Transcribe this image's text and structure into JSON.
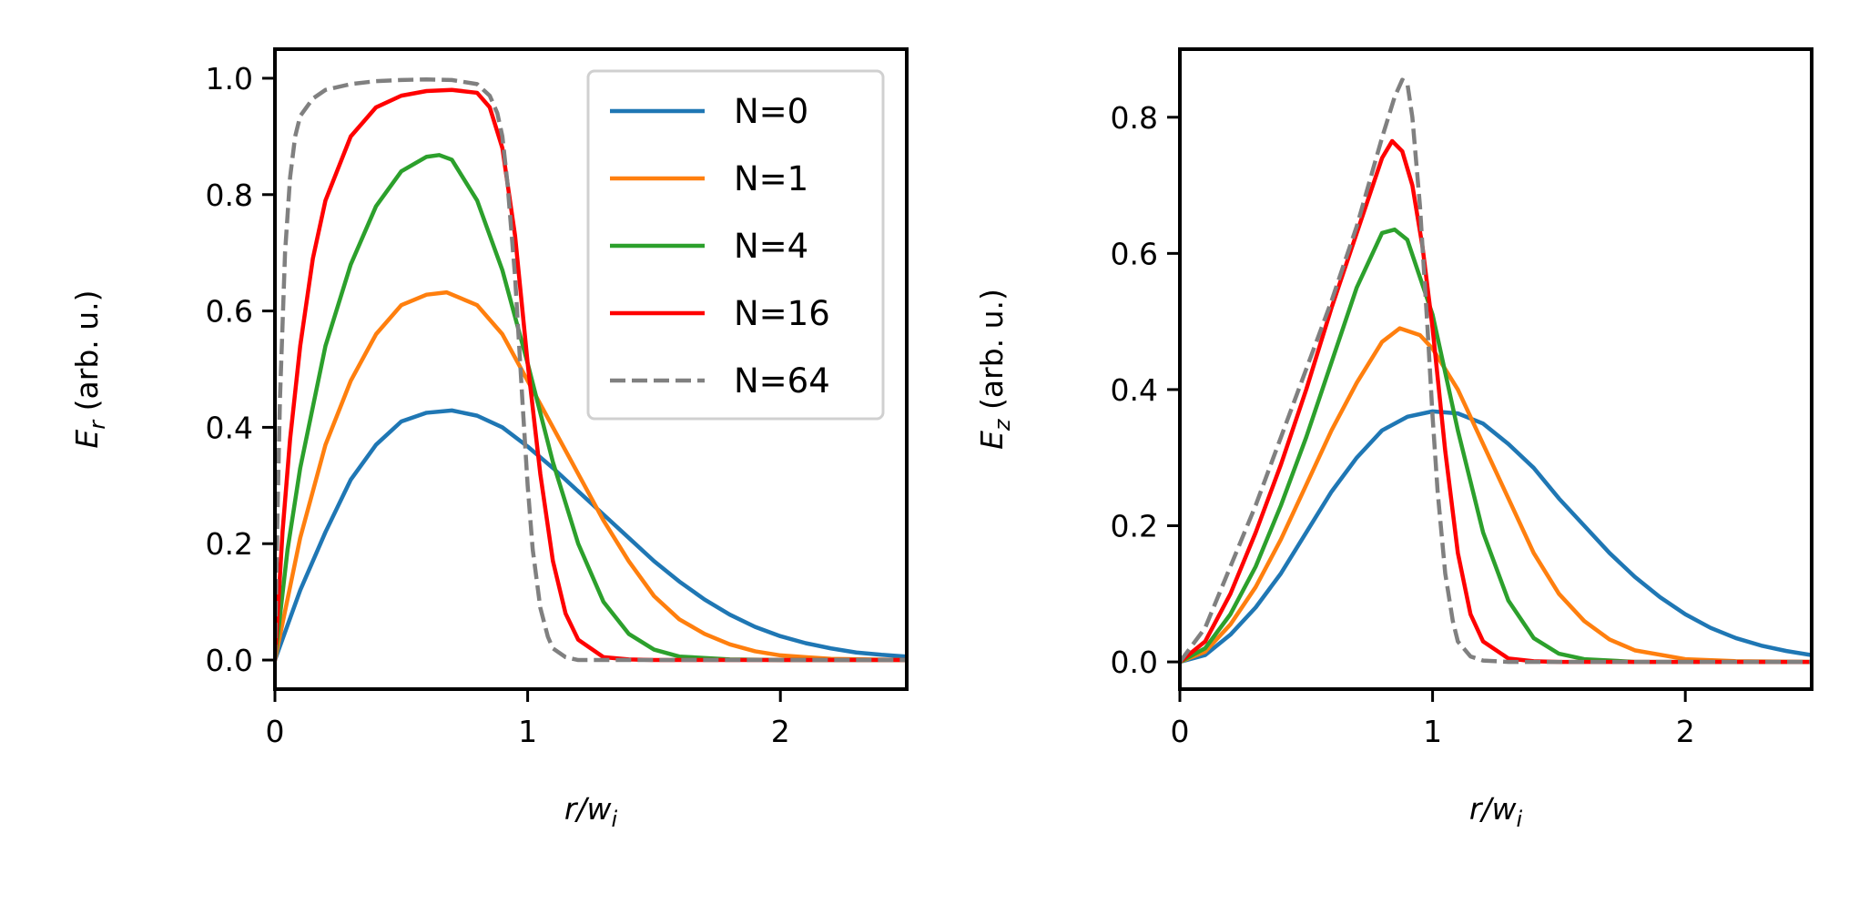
{
  "chart_data": [
    {
      "type": "line",
      "panel": "left",
      "ylabel_main": "E",
      "ylabel_sub": "r",
      "ylabel_rest": " (arb. u.)",
      "xlabel_main": "r/w",
      "xlabel_sub": "i",
      "xlim": [
        0,
        2.5
      ],
      "ylim": [
        -0.05,
        1.05
      ],
      "xticks": [
        "0",
        "1",
        "2"
      ],
      "xtick_values": [
        0,
        1,
        2
      ],
      "yticks": [
        "0.0",
        "0.2",
        "0.4",
        "0.6",
        "0.8",
        "1.0"
      ],
      "ytick_values": [
        0.0,
        0.2,
        0.4,
        0.6,
        0.8,
        1.0
      ],
      "legend": {
        "placement": "top-right",
        "entries": [
          "N=0",
          "N=1",
          "N=4",
          "N=16",
          "N=64"
        ]
      },
      "series": [
        {
          "name": "N=0",
          "color": "#1f77b4",
          "dash": false,
          "x": [
            0,
            0.1,
            0.2,
            0.3,
            0.4,
            0.5,
            0.6,
            0.7,
            0.8,
            0.9,
            1.0,
            1.1,
            1.2,
            1.3,
            1.4,
            1.5,
            1.6,
            1.7,
            1.8,
            1.9,
            2.0,
            2.1,
            2.2,
            2.3,
            2.4,
            2.5
          ],
          "values": [
            0,
            0.12,
            0.22,
            0.31,
            0.37,
            0.41,
            0.425,
            0.429,
            0.42,
            0.4,
            0.367,
            0.33,
            0.29,
            0.25,
            0.21,
            0.17,
            0.135,
            0.104,
            0.078,
            0.057,
            0.041,
            0.029,
            0.02,
            0.013,
            0.009,
            0.006
          ]
        },
        {
          "name": "N=1",
          "color": "#ff7f0e",
          "dash": false,
          "x": [
            0,
            0.1,
            0.2,
            0.3,
            0.4,
            0.5,
            0.6,
            0.68,
            0.8,
            0.9,
            1.0,
            1.1,
            1.2,
            1.3,
            1.4,
            1.5,
            1.6,
            1.7,
            1.8,
            1.9,
            2.0,
            2.2,
            2.5
          ],
          "values": [
            0,
            0.21,
            0.37,
            0.48,
            0.56,
            0.61,
            0.628,
            0.632,
            0.61,
            0.56,
            0.48,
            0.4,
            0.32,
            0.24,
            0.17,
            0.11,
            0.07,
            0.045,
            0.027,
            0.015,
            0.008,
            0.002,
            0.0
          ]
        },
        {
          "name": "N=4",
          "color": "#2ca02c",
          "dash": false,
          "x": [
            0,
            0.05,
            0.1,
            0.2,
            0.3,
            0.4,
            0.5,
            0.6,
            0.65,
            0.7,
            0.8,
            0.9,
            1.0,
            1.1,
            1.2,
            1.3,
            1.4,
            1.5,
            1.6,
            1.8,
            2.0,
            2.5
          ],
          "values": [
            0,
            0.19,
            0.33,
            0.54,
            0.68,
            0.78,
            0.84,
            0.865,
            0.868,
            0.86,
            0.79,
            0.67,
            0.51,
            0.34,
            0.2,
            0.1,
            0.045,
            0.018,
            0.006,
            0.001,
            0.0,
            0.0
          ]
        },
        {
          "name": "N=16",
          "color": "#ff0000",
          "dash": false,
          "x": [
            0,
            0.03,
            0.06,
            0.1,
            0.15,
            0.2,
            0.3,
            0.4,
            0.5,
            0.6,
            0.7,
            0.8,
            0.85,
            0.9,
            0.95,
            1.0,
            1.05,
            1.1,
            1.15,
            1.2,
            1.3,
            1.4,
            1.5,
            2.0,
            2.5
          ],
          "values": [
            0,
            0.22,
            0.38,
            0.54,
            0.69,
            0.79,
            0.9,
            0.95,
            0.97,
            0.978,
            0.98,
            0.975,
            0.95,
            0.88,
            0.73,
            0.51,
            0.32,
            0.17,
            0.08,
            0.035,
            0.005,
            0.001,
            0.0,
            0.0,
            0.0
          ]
        },
        {
          "name": "N=64",
          "color": "#808080",
          "dash": true,
          "x": [
            0,
            0.01,
            0.02,
            0.04,
            0.06,
            0.08,
            0.1,
            0.15,
            0.2,
            0.3,
            0.4,
            0.5,
            0.6,
            0.7,
            0.8,
            0.85,
            0.88,
            0.9,
            0.92,
            0.95,
            0.98,
            1.0,
            1.02,
            1.05,
            1.08,
            1.1,
            1.15,
            1.2,
            1.3,
            2.5
          ],
          "values": [
            0,
            0.25,
            0.45,
            0.7,
            0.83,
            0.9,
            0.935,
            0.965,
            0.98,
            0.99,
            0.995,
            0.997,
            0.998,
            0.997,
            0.99,
            0.97,
            0.94,
            0.9,
            0.82,
            0.66,
            0.44,
            0.3,
            0.19,
            0.09,
            0.04,
            0.02,
            0.005,
            0.0,
            0.0,
            0.0
          ]
        }
      ]
    },
    {
      "type": "line",
      "panel": "right",
      "ylabel_main": "E",
      "ylabel_sub": "z",
      "ylabel_rest": " (arb. u.)",
      "xlabel_main": "r/w",
      "xlabel_sub": "i",
      "xlim": [
        0,
        2.5
      ],
      "ylim": [
        -0.04,
        0.9
      ],
      "xticks": [
        "0",
        "1",
        "2"
      ],
      "xtick_values": [
        0,
        1,
        2
      ],
      "yticks": [
        "0.0",
        "0.2",
        "0.4",
        "0.6",
        "0.8"
      ],
      "ytick_values": [
        0.0,
        0.2,
        0.4,
        0.6,
        0.8
      ],
      "series": [
        {
          "name": "N=0",
          "color": "#1f77b4",
          "dash": false,
          "x": [
            0,
            0.1,
            0.2,
            0.3,
            0.4,
            0.5,
            0.6,
            0.7,
            0.8,
            0.9,
            1.0,
            1.1,
            1.2,
            1.3,
            1.4,
            1.5,
            1.6,
            1.7,
            1.8,
            1.9,
            2.0,
            2.1,
            2.2,
            2.3,
            2.4,
            2.5
          ],
          "values": [
            0,
            0.01,
            0.04,
            0.08,
            0.13,
            0.19,
            0.25,
            0.3,
            0.34,
            0.36,
            0.368,
            0.365,
            0.35,
            0.32,
            0.285,
            0.24,
            0.2,
            0.16,
            0.125,
            0.095,
            0.07,
            0.05,
            0.035,
            0.024,
            0.016,
            0.01
          ]
        },
        {
          "name": "N=1",
          "color": "#ff7f0e",
          "dash": false,
          "x": [
            0,
            0.1,
            0.2,
            0.3,
            0.4,
            0.5,
            0.6,
            0.7,
            0.8,
            0.87,
            0.95,
            1.0,
            1.1,
            1.2,
            1.3,
            1.4,
            1.5,
            1.6,
            1.7,
            1.8,
            2.0,
            2.2,
            2.5
          ],
          "values": [
            0,
            0.015,
            0.055,
            0.11,
            0.18,
            0.26,
            0.34,
            0.41,
            0.47,
            0.49,
            0.48,
            0.46,
            0.4,
            0.32,
            0.24,
            0.16,
            0.1,
            0.06,
            0.033,
            0.017,
            0.004,
            0.001,
            0.0
          ]
        },
        {
          "name": "N=4",
          "color": "#2ca02c",
          "dash": false,
          "x": [
            0,
            0.1,
            0.2,
            0.3,
            0.4,
            0.5,
            0.6,
            0.7,
            0.8,
            0.85,
            0.9,
            1.0,
            1.1,
            1.2,
            1.3,
            1.4,
            1.5,
            1.6,
            1.8,
            2.0,
            2.5
          ],
          "values": [
            0,
            0.02,
            0.07,
            0.14,
            0.23,
            0.33,
            0.44,
            0.55,
            0.63,
            0.635,
            0.62,
            0.51,
            0.34,
            0.19,
            0.09,
            0.035,
            0.012,
            0.004,
            0.0,
            0.0,
            0.0
          ]
        },
        {
          "name": "N=16",
          "color": "#ff0000",
          "dash": false,
          "x": [
            0,
            0.1,
            0.2,
            0.3,
            0.4,
            0.5,
            0.6,
            0.7,
            0.8,
            0.84,
            0.88,
            0.92,
            0.96,
            1.0,
            1.05,
            1.1,
            1.15,
            1.2,
            1.3,
            1.4,
            1.5,
            2.0,
            2.5
          ],
          "values": [
            0,
            0.03,
            0.1,
            0.19,
            0.29,
            0.4,
            0.52,
            0.63,
            0.74,
            0.765,
            0.75,
            0.7,
            0.61,
            0.49,
            0.31,
            0.16,
            0.07,
            0.03,
            0.005,
            0.001,
            0.0,
            0.0,
            0.0
          ]
        },
        {
          "name": "N=64",
          "color": "#808080",
          "dash": true,
          "x": [
            0,
            0.1,
            0.2,
            0.3,
            0.4,
            0.5,
            0.6,
            0.7,
            0.8,
            0.85,
            0.88,
            0.9,
            0.92,
            0.95,
            0.98,
            1.0,
            1.02,
            1.05,
            1.08,
            1.1,
            1.15,
            1.2,
            1.3,
            2.5
          ],
          "values": [
            0,
            0.05,
            0.14,
            0.23,
            0.33,
            0.43,
            0.53,
            0.64,
            0.77,
            0.83,
            0.855,
            0.85,
            0.8,
            0.67,
            0.49,
            0.36,
            0.25,
            0.13,
            0.06,
            0.03,
            0.008,
            0.002,
            0.0,
            0.0
          ]
        }
      ]
    }
  ]
}
